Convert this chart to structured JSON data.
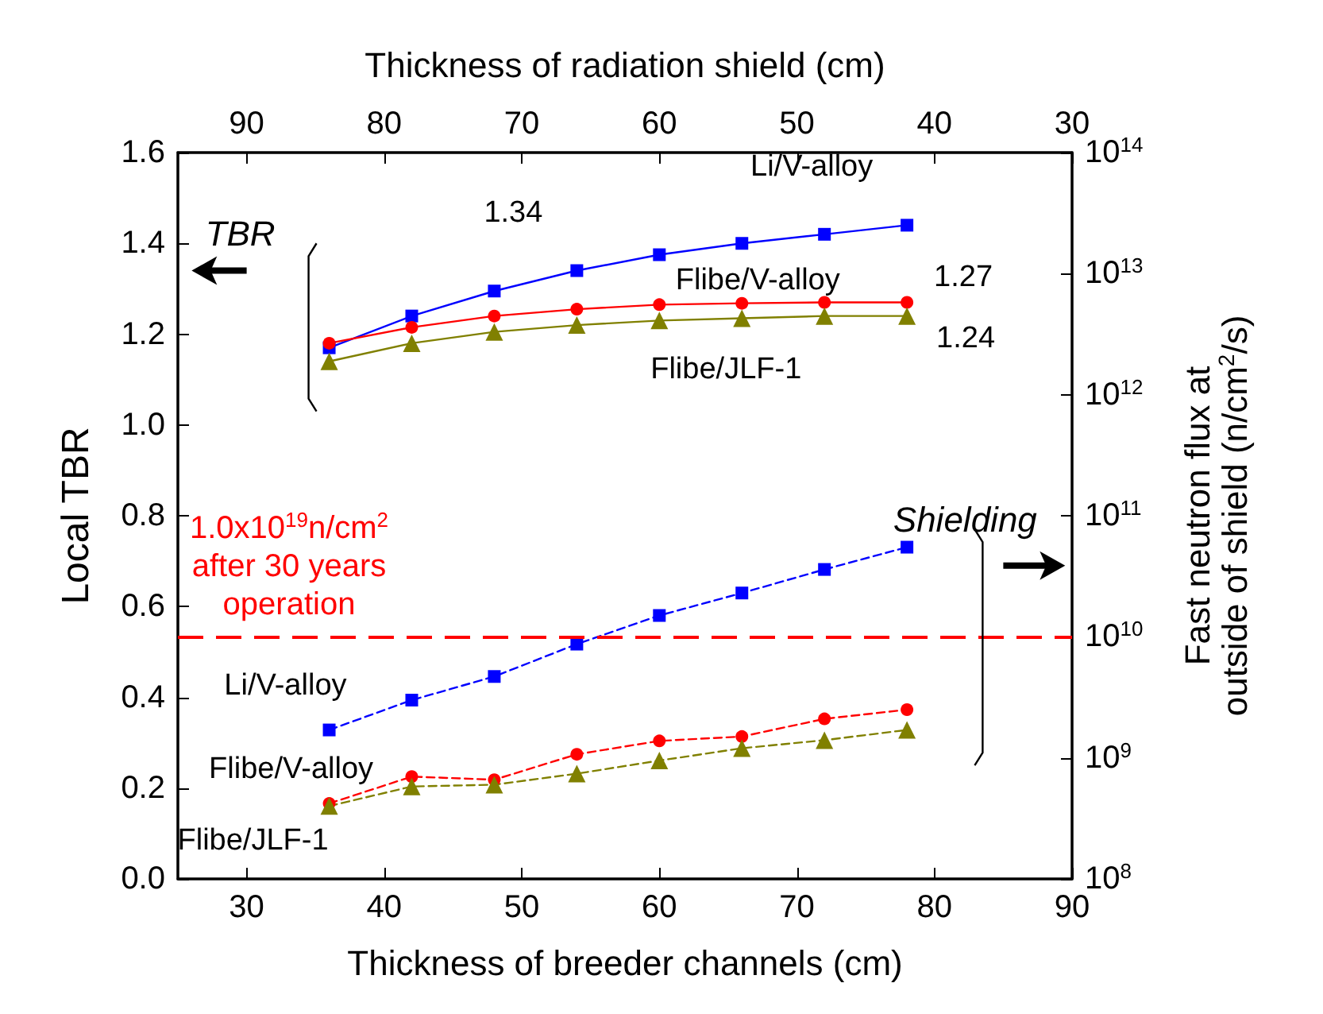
{
  "chart_data": {
    "type": "line",
    "xlabel": "Thickness of breeder channels (cm)",
    "x2label": "Thickness of radiation shield (cm)",
    "ylabel": "Local TBR",
    "y2label": "Fast neutron flux at\noutside of shield (n/cm$^{2}$/s)",
    "x": [
      36,
      42,
      48,
      54,
      60,
      66,
      72,
      78
    ],
    "xlim": [
      25,
      90
    ],
    "xticks": [
      30,
      40,
      50,
      60,
      70,
      80,
      90
    ],
    "x2lim": [
      95,
      30
    ],
    "x2ticks": [
      90,
      80,
      70,
      60,
      50,
      40,
      30
    ],
    "ylim": [
      0,
      1.6
    ],
    "yticks": [
      {
        "value": 0,
        "label": "0.0"
      },
      {
        "value": 0.2,
        "label": "0.2"
      },
      {
        "value": 0.4,
        "label": "0.4"
      },
      {
        "value": 0.6,
        "label": "0.6"
      },
      {
        "value": 0.8,
        "label": "0.8"
      },
      {
        "value": 1,
        "label": "1.0"
      },
      {
        "value": 1.2,
        "label": "1.2"
      },
      {
        "value": 1.4,
        "label": "1.4"
      },
      {
        "value": 1.6,
        "label": "1.6"
      }
    ],
    "y2lim": [
      100000000,
      100000000000000
    ],
    "y2ticks": [
      {
        "value": 100000000,
        "label": "10$^{8}$"
      },
      {
        "value": 1000000000,
        "label": "10$^{9}$"
      },
      {
        "value": 10000000000,
        "label": "10$^{10}$"
      },
      {
        "value": 100000000000,
        "label": "10$^{11}$"
      },
      {
        "value": 1000000000000,
        "label": "10$^{12}$"
      },
      {
        "value": 10000000000000,
        "label": "10$^{13}$"
      },
      {
        "value": 100000000000000,
        "label": "10$^{14}$"
      }
    ],
    "log": "y2",
    "grid": false,
    "legend": false,
    "series": [
      {
        "name": "Li/V-alloy",
        "color": "#0000ff",
        "marker": "square",
        "line_style": "solid",
        "values": [
          1.17,
          1.24,
          1.295,
          1.34,
          1.375,
          1.4,
          1.42,
          1.44
        ],
        "value_labels": [
          null,
          null,
          null,
          "1.34",
          null,
          null,
          null,
          null
        ]
      },
      {
        "name": "Flibe/V-alloy",
        "color": "#ff0000",
        "marker": "circle",
        "line_style": "solid",
        "values": [
          1.18,
          1.215,
          1.24,
          1.255,
          1.265,
          1.268,
          1.27,
          1.27
        ],
        "value_labels": [
          null,
          null,
          null,
          null,
          null,
          null,
          null,
          "1.27"
        ]
      },
      {
        "name": "Flibe/JLF-1",
        "color": "#808000",
        "marker": "triangle",
        "line_style": "solid",
        "values": [
          1.14,
          1.18,
          1.205,
          1.22,
          1.23,
          1.235,
          1.24,
          1.24
        ],
        "value_labels": [
          null,
          null,
          null,
          null,
          null,
          null,
          null,
          "1.24"
        ]
      },
      {
        "name": "Li/V-alloy",
        "color": "#0000ff",
        "marker": "square",
        "line_style": "dashed",
        "axis": "y2",
        "values": [
          1700000000,
          3000000000,
          4700000000,
          8700000000,
          15000000000,
          23000000000,
          36000000000,
          55000000000
        ]
      },
      {
        "name": "Flibe/V-alloy",
        "color": "#ff0000",
        "marker": "circle",
        "line_style": "dashed",
        "axis": "y2",
        "values": [
          420000000,
          700000000,
          660000000,
          1070000000,
          1380000000,
          1500000000,
          2100000000,
          2500000000
        ]
      },
      {
        "name": "Flibe/JLF-1",
        "color": "#808000",
        "marker": "triangle",
        "line_style": "dashed",
        "axis": "y2",
        "values": [
          400000000,
          580000000,
          600000000,
          740000000,
          950000000,
          1200000000,
          1400000000,
          1700000000
        ]
      }
    ],
    "ref_lines": [
      {
        "axis": "y2",
        "value": 10000000000,
        "label": "1.0x10$^{19}$n/cm$^{2}$\nafter 30 years\noperation",
        "color": "#ff0000",
        "line_style": "dashed"
      }
    ],
    "annotations": [
      "TBR",
      "Shielding"
    ]
  }
}
